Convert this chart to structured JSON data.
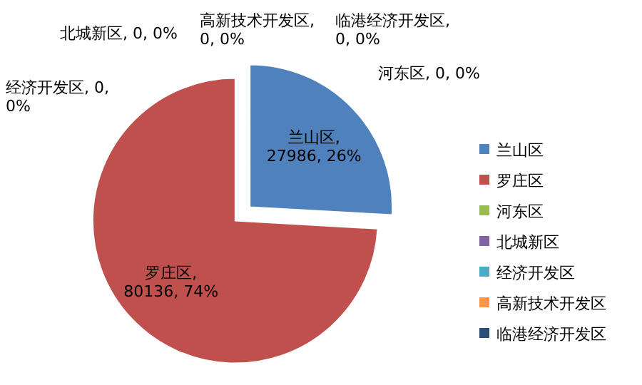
{
  "chart_data": {
    "type": "pie",
    "categories": [
      "兰山区",
      "罗庄区",
      "河东区",
      "北城新区",
      "经济开发区",
      "高新技术开发区",
      "临港经济开发区"
    ],
    "values": [
      27986,
      80136,
      0,
      0,
      0,
      0,
      0
    ],
    "colors": [
      "#4f81bd",
      "#c0504d",
      "#9bbb59",
      "#8064a2",
      "#4bacc6",
      "#f79646",
      "#2c4d75"
    ],
    "value_labels": [
      "兰山区, 27986, 26%",
      "罗庄区, 80136, 74%",
      "河东区, 0, 0%",
      "北城新区, 0, 0%",
      "经济开发区, 0, 0%",
      "高新技术开发区, 0, 0%",
      "临港经济开发区, 0, 0%"
    ],
    "legend": "right"
  }
}
